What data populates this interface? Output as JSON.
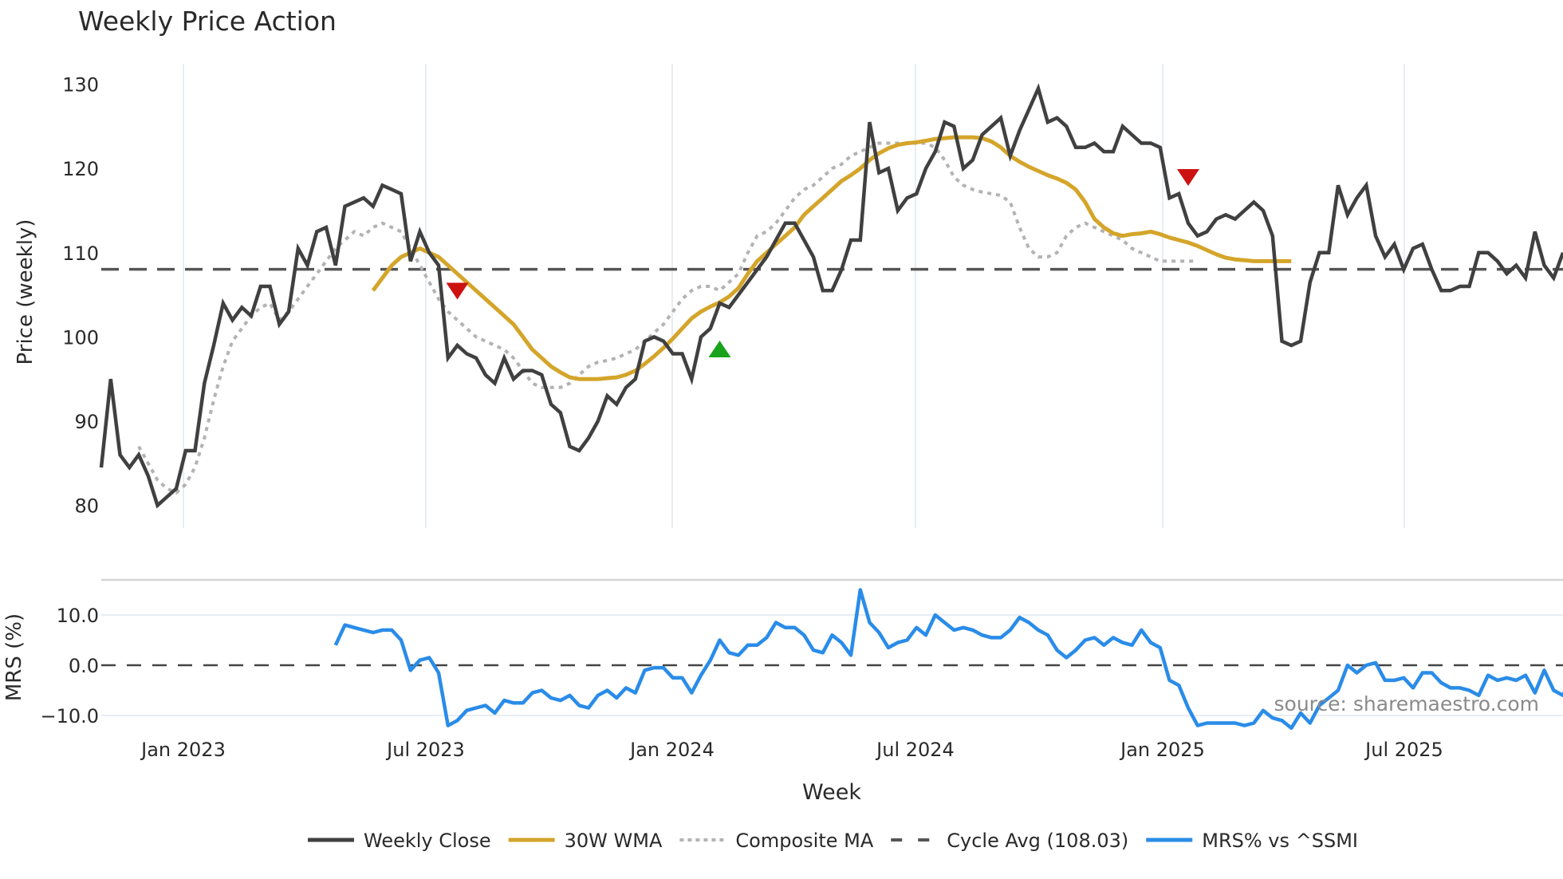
{
  "title": "Weekly Price Action",
  "watermark": "source: sharemaestro.com",
  "xlabel": "Week",
  "price_panel": {
    "ylabel": "Price (weekly)",
    "yticks": [
      80,
      90,
      100,
      110,
      120,
      130
    ]
  },
  "mrs_panel": {
    "ylabel": "MRS (%)",
    "yticks": [
      "10.0",
      "0.0",
      "−10.0"
    ]
  },
  "xticks": [
    "Jan 2023",
    "Jul 2023",
    "Jan 2024",
    "Jul 2024",
    "Jan 2025",
    "Jul 2025"
  ],
  "legend": [
    {
      "label": "Weekly Close",
      "color": "#404040",
      "style": "solid"
    },
    {
      "label": "30W WMA",
      "color": "#D4A52A",
      "style": "solid"
    },
    {
      "label": "Composite MA",
      "color": "#B3B3B3",
      "style": "dotted"
    },
    {
      "label": "Cycle Avg (108.03)",
      "color": "#555555",
      "style": "dashed"
    },
    {
      "label": "MRS% vs ^SSMI",
      "color": "#2A8CE8",
      "style": "solid"
    }
  ],
  "colors": {
    "close": "#404040",
    "wma": "#D4A52A",
    "composite": "#B3B3B3",
    "cycle": "#555555",
    "mrs": "#2A8CE8",
    "sell_marker": "#CC1111",
    "buy_marker": "#1AA31A",
    "grid": "#E8EDF3"
  },
  "chart_data": [
    {
      "type": "line",
      "title": "Weekly Price Action",
      "xlabel": "Week",
      "ylabel": "Price (weekly)",
      "ylim": [
        77,
        131
      ],
      "x_range": [
        "Nov 2022",
        "Nov 2025"
      ],
      "x_ticks": [
        "Jan 2023",
        "Jul 2023",
        "Jan 2024",
        "Jul 2024",
        "Jan 2025",
        "Jul 2025"
      ],
      "cycle_avg": 108.03,
      "series": [
        {
          "name": "Weekly Close",
          "values": [
            84.5,
            95,
            86,
            84.5,
            86,
            83.5,
            80,
            81,
            82,
            86.5,
            86.5,
            94.5,
            99,
            104,
            102,
            103.5,
            102.5,
            106,
            106,
            101.5,
            103,
            110.5,
            108.5,
            112.5,
            113,
            108.5,
            115.5,
            116,
            116.5,
            115.5,
            118,
            117.5,
            117,
            109,
            112.5,
            110,
            108.5,
            97.5,
            99,
            98,
            97.5,
            95.5,
            94.5,
            97.5,
            95,
            96,
            96,
            95.5,
            92,
            91,
            87,
            86.5,
            88,
            90,
            93,
            92,
            94,
            95,
            99.5,
            100,
            99.5,
            98,
            98,
            95,
            100,
            101,
            104,
            103.5,
            105,
            106.5,
            108,
            109.5,
            111.5,
            113.5,
            113.5,
            111.5,
            109.5,
            105.5,
            105.5,
            108,
            111.5,
            111.5,
            125.5,
            119.5,
            120,
            115,
            116.5,
            117,
            120,
            122,
            125.5,
            125,
            120,
            121,
            124,
            125,
            126,
            121.5,
            124.5,
            127,
            129.5,
            125.5,
            126,
            125,
            122.5,
            122.5,
            123,
            122,
            122,
            125,
            124,
            123,
            123,
            122.5,
            116.5,
            117,
            113.5,
            112,
            112.5,
            114,
            114.5,
            114,
            115,
            116,
            115,
            112,
            99.5,
            99,
            99.5,
            106.5,
            110,
            110,
            118,
            114.5,
            116.5,
            118,
            112,
            109.5,
            111,
            108,
            110.5,
            111,
            108,
            105.5,
            105.5,
            106,
            106,
            110,
            110,
            109,
            107.5,
            108.5,
            107,
            112.5,
            108.5,
            107,
            110
          ]
        },
        {
          "name": "30W WMA",
          "start_index": 29,
          "values": [
            105.5,
            107,
            108.5,
            109.5,
            110,
            110.5,
            110,
            109.5,
            108.5,
            107.5,
            106.5,
            105.5,
            104.5,
            103.5,
            102.5,
            101.5,
            100,
            98.5,
            97.5,
            96.5,
            95.8,
            95.2,
            95,
            95,
            95,
            95.1,
            95.2,
            95.5,
            96,
            96.8,
            97.7,
            98.7,
            99.8,
            101,
            102.2,
            103,
            103.6,
            104.1,
            104.8,
            105.8,
            107.5,
            109,
            110,
            111,
            112,
            113,
            114.5,
            115.5,
            116.5,
            117.5,
            118.5,
            119.2,
            120,
            121,
            121.8,
            122.4,
            122.8,
            123,
            123.1,
            123.3,
            123.5,
            123.6,
            123.7,
            123.7,
            123.7,
            123.6,
            123.2,
            122.5,
            121.5,
            120.8,
            120.2,
            119.7,
            119.2,
            118.8,
            118.3,
            117.5,
            116,
            114,
            113,
            112.3,
            112,
            112.2,
            112.3,
            112.5,
            112.2,
            111.8,
            111.5,
            111.2,
            110.8,
            110.3,
            109.8,
            109.4,
            109.2,
            109.1,
            109,
            109,
            109,
            109,
            109
          ]
        },
        {
          "name": "Composite MA",
          "start_index": 4,
          "values": [
            87,
            85,
            83,
            82,
            81.5,
            82.5,
            84.5,
            88,
            92.5,
            96.5,
            99.5,
            101,
            102.5,
            103.5,
            104,
            102,
            103,
            104.5,
            106,
            107.5,
            109,
            110.5,
            111.5,
            112.5,
            112,
            113,
            113.5,
            113,
            112.5,
            110.5,
            108.5,
            106.5,
            104.5,
            103,
            102,
            101,
            100,
            99.5,
            99,
            98.5,
            97.5,
            96,
            94.5,
            94,
            94,
            94,
            94.5,
            95.5,
            96.5,
            97,
            97.2,
            97.5,
            98,
            98.5,
            99.5,
            100.5,
            101.5,
            103,
            104.5,
            105.5,
            106,
            106,
            105.5,
            106.5,
            107.5,
            110,
            112,
            112.5,
            113.5,
            115,
            116.5,
            117.5,
            118,
            119,
            120,
            120.5,
            121.5,
            122,
            122.5,
            123,
            123,
            123,
            123,
            123,
            123,
            122.5,
            121,
            119,
            118,
            117.5,
            117.2,
            117,
            116.8,
            116,
            113,
            110.5,
            109.5,
            109.5,
            110,
            112,
            113,
            113.5,
            113,
            112.5,
            112,
            111.5,
            110.5,
            110,
            109.5,
            109,
            109,
            109,
            109,
            109
          ]
        },
        {
          "name": "Cycle Avg (108.03)",
          "constant": 108.03
        }
      ],
      "markers": [
        {
          "type": "sell",
          "shape": "triangle-down",
          "x_week": 38,
          "y": 105.5
        },
        {
          "type": "buy",
          "shape": "triangle-up",
          "x_week": 66,
          "y": 98.5
        },
        {
          "type": "sell",
          "shape": "triangle-down",
          "x_week": 116,
          "y": 119
        }
      ]
    },
    {
      "type": "line",
      "ylabel": "MRS (%)",
      "ylim": [
        -14,
        17
      ],
      "yticks": [
        -10,
        0,
        10
      ],
      "reference_line": 0,
      "series": [
        {
          "name": "MRS% vs ^SSMI",
          "start_index": 25,
          "values": [
            4,
            8,
            7.5,
            7,
            6.5,
            7,
            7,
            5,
            -1,
            1,
            1.5,
            -1.5,
            -12,
            -11,
            -9,
            -8.5,
            -8,
            -9.5,
            -7,
            -7.5,
            -7.5,
            -5.5,
            -5,
            -6.5,
            -7,
            -6,
            -8,
            -8.5,
            -6,
            -5,
            -6.5,
            -4.5,
            -5.5,
            -1,
            -0.5,
            -0.5,
            -2.5,
            -2.5,
            -5.5,
            -2,
            1,
            5,
            2.5,
            2,
            4,
            4,
            5.5,
            8.5,
            7.5,
            7.5,
            6,
            3,
            2.5,
            6,
            4.5,
            2,
            15,
            8.5,
            6.5,
            3.5,
            4.5,
            5,
            7.5,
            6,
            10,
            8.5,
            7,
            7.5,
            7,
            6,
            5.5,
            5.5,
            7,
            9.5,
            8.5,
            7,
            6,
            3,
            1.5,
            3,
            5,
            5.5,
            4,
            5.5,
            4.5,
            4,
            7,
            4.5,
            3.5,
            -3,
            -4,
            -8.5,
            -12,
            -11.5,
            -11.5,
            -11.5,
            -11.5,
            -12,
            -11.5,
            -9,
            -10.5,
            -11,
            -12.5,
            -9.5,
            -11.5,
            -8,
            -6.5,
            -5,
            0,
            -1.5,
            0,
            0.5,
            -3,
            -3,
            -2.5,
            -4.5,
            -1.5,
            -1.5,
            -3.5,
            -4.5,
            -4.5,
            -5,
            -6,
            -2,
            -3,
            -2.5,
            -3,
            -2,
            -5.5,
            -1,
            -5,
            -6,
            -2
          ]
        }
      ]
    }
  ]
}
